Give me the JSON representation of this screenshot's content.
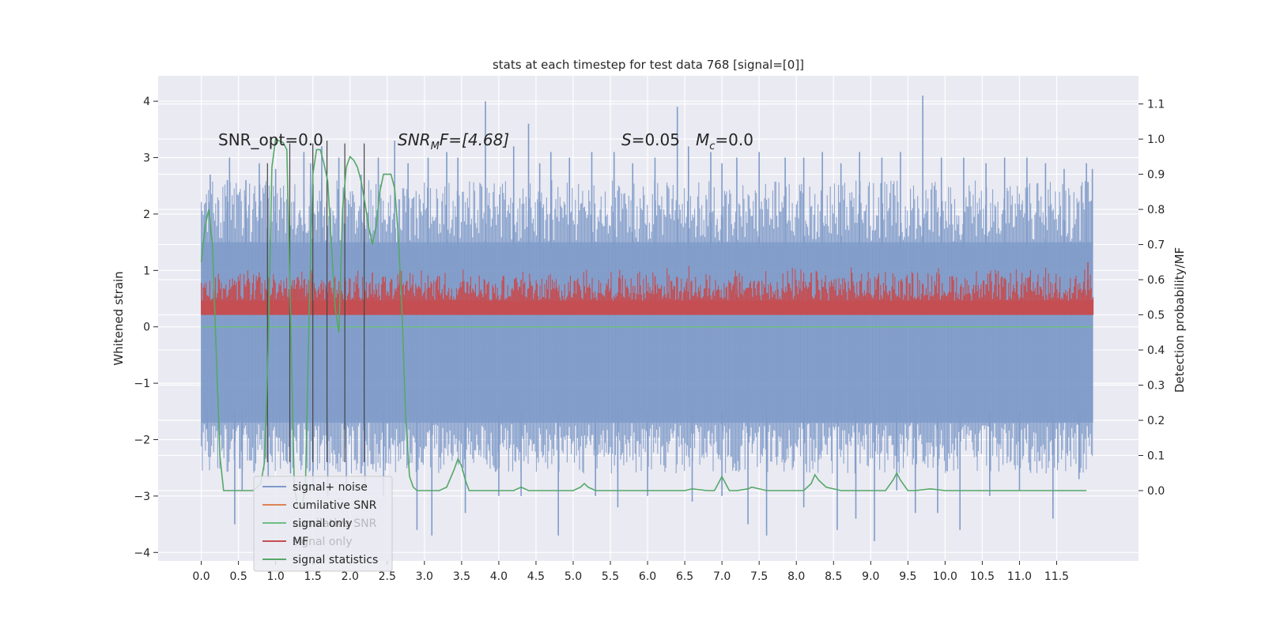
{
  "chart_data": {
    "type": "line",
    "title": "stats at each timestep for test data 768 [signal=[0]]",
    "xlabel": "",
    "ylabel": "Whitened strain",
    "ylabel_right": "Detection probability/MF",
    "xlim": [
      -0.58,
      12.6
    ],
    "ylim": [
      -4.15,
      4.45
    ],
    "ylim_right": [
      -0.2,
      1.18
    ],
    "xticks": [
      0.0,
      0.5,
      1.0,
      1.5,
      2.0,
      2.5,
      3.0,
      3.5,
      4.0,
      4.5,
      5.0,
      5.5,
      6.0,
      6.5,
      7.0,
      7.5,
      8.0,
      8.5,
      9.0,
      9.5,
      10.0,
      10.5,
      11.0,
      11.5
    ],
    "xtick_labels": [
      "0.0",
      "0.5",
      "1.0",
      "1.5",
      "2.0",
      "2.5",
      "3.0",
      "3.5",
      "4.0",
      "4.5",
      "5.0",
      "5.5",
      "6.0",
      "6.5",
      "7.0",
      "7.5",
      "8.0",
      "8.5",
      "9.0",
      "9.5",
      "10.0",
      "10.5",
      "11.0",
      "11.5"
    ],
    "yticks": [
      -4,
      -3,
      -2,
      -1,
      0,
      1,
      2,
      3,
      4
    ],
    "ytick_labels": [
      "−4",
      "−3",
      "−2",
      "−1",
      "0",
      "1",
      "2",
      "3",
      "4"
    ],
    "yticks_right": [
      0.0,
      0.1,
      0.2,
      0.3,
      0.4,
      0.5,
      0.6,
      0.7,
      0.8,
      0.9,
      1.0,
      1.1
    ],
    "ytick_labels_right": [
      "0.0",
      "0.1",
      "0.2",
      "0.3",
      "0.4",
      "0.5",
      "0.6",
      "0.7",
      "0.8",
      "0.9",
      "1.0",
      "1.1"
    ],
    "annotations": {
      "snr_opt": "SNR_opt=0.0",
      "snr_mf_prefix": "SNR",
      "snr_mf_sub": "M",
      "snr_mf_suffix": "F=[4.68]",
      "s_label": "S",
      "s_value": "=0.05",
      "mc_label": "M",
      "mc_sub": "c",
      "mc_value": "=0.0"
    },
    "vertical_lines_x": [
      0.89,
      1.19,
      1.5,
      1.69,
      1.93,
      2.19
    ],
    "vertical_lines_top": [
      2.9,
      3.25,
      3.25,
      3.3,
      3.25,
      3.25
    ],
    "noise_series": {
      "name": "signal+ noise",
      "color": "#7f9bc9",
      "x_range": [
        0.0,
        11.99
      ],
      "band": [
        -1.7,
        1.5
      ],
      "spikes_up": [
        [
          0.06,
          2.2
        ],
        [
          0.12,
          2.7
        ],
        [
          0.35,
          2.6
        ],
        [
          0.38,
          3.0
        ],
        [
          0.6,
          2.6
        ],
        [
          0.78,
          2.9
        ],
        [
          1.0,
          2.8
        ],
        [
          1.38,
          3.1
        ],
        [
          1.47,
          2.9
        ],
        [
          1.62,
          3.2
        ],
        [
          1.85,
          3.0
        ],
        [
          2.15,
          2.7
        ],
        [
          2.38,
          3.0
        ],
        [
          2.6,
          3.3
        ],
        [
          2.78,
          2.9
        ],
        [
          3.05,
          3.0
        ],
        [
          3.3,
          3.1
        ],
        [
          3.45,
          3.0
        ],
        [
          3.82,
          4.0
        ],
        [
          4.2,
          3.2
        ],
        [
          4.4,
          3.6
        ],
        [
          4.55,
          2.9
        ],
        [
          4.7,
          3.1
        ],
        [
          4.95,
          3.0
        ],
        [
          5.25,
          3.1
        ],
        [
          5.55,
          3.1
        ],
        [
          5.8,
          2.9
        ],
        [
          6.1,
          3.0
        ],
        [
          6.4,
          3.9
        ],
        [
          6.55,
          3.2
        ],
        [
          6.85,
          3.1
        ],
        [
          7.0,
          2.9
        ],
        [
          7.2,
          3.0
        ],
        [
          7.5,
          3.1
        ],
        [
          7.85,
          3.0
        ],
        [
          8.1,
          3.0
        ],
        [
          8.35,
          3.1
        ],
        [
          8.6,
          2.9
        ],
        [
          8.85,
          3.1
        ],
        [
          9.15,
          3.0
        ],
        [
          9.4,
          3.1
        ],
        [
          9.7,
          4.1
        ],
        [
          9.95,
          3.0
        ],
        [
          10.25,
          3.0
        ],
        [
          10.55,
          2.9
        ],
        [
          10.8,
          3.0
        ],
        [
          11.1,
          3.0
        ],
        [
          11.35,
          2.9
        ],
        [
          11.6,
          2.8
        ],
        [
          11.9,
          2.9
        ],
        [
          11.98,
          2.8
        ]
      ],
      "spikes_down": [
        [
          0.08,
          -1.8
        ],
        [
          0.45,
          -3.5
        ],
        [
          0.55,
          -2.9
        ],
        [
          0.9,
          -2.7
        ],
        [
          1.2,
          -2.6
        ],
        [
          1.5,
          -2.9
        ],
        [
          1.7,
          -3.0
        ],
        [
          1.95,
          -2.8
        ],
        [
          2.2,
          -2.9
        ],
        [
          2.45,
          -3.0
        ],
        [
          2.9,
          -3.6
        ],
        [
          3.1,
          -3.7
        ],
        [
          3.55,
          -3.3
        ],
        [
          4.0,
          -3.0
        ],
        [
          4.3,
          -3.0
        ],
        [
          4.8,
          -3.7
        ],
        [
          5.3,
          -3.0
        ],
        [
          5.6,
          -3.2
        ],
        [
          6.0,
          -3.0
        ],
        [
          6.6,
          -3.1
        ],
        [
          7.0,
          -3.0
        ],
        [
          7.35,
          -3.5
        ],
        [
          7.6,
          -3.7
        ],
        [
          8.1,
          -3.2
        ],
        [
          8.55,
          -3.6
        ],
        [
          8.8,
          -3.4
        ],
        [
          9.05,
          -3.8
        ],
        [
          9.35,
          -2.9
        ],
        [
          9.6,
          -3.3
        ],
        [
          9.9,
          -3.3
        ],
        [
          10.2,
          -3.6
        ],
        [
          10.6,
          -3.0
        ],
        [
          11.0,
          -2.9
        ],
        [
          11.45,
          -3.4
        ],
        [
          11.8,
          -2.7
        ]
      ]
    },
    "mf_series": {
      "name": "MF",
      "color": "#c44e52",
      "x_range": [
        0.0,
        11.99
      ],
      "band_right": [
        0.5,
        0.54
      ],
      "peak_right": 0.64,
      "spikes_right": [
        [
          1.25,
          0.6
        ],
        [
          2.3,
          0.62
        ],
        [
          3.2,
          0.61
        ],
        [
          4.3,
          0.6
        ],
        [
          6.1,
          0.61
        ],
        [
          7.2,
          0.61
        ],
        [
          8.2,
          0.62
        ],
        [
          9.1,
          0.61
        ],
        [
          10.1,
          0.61
        ],
        [
          11.92,
          0.65
        ]
      ]
    },
    "zero_line": {
      "name": "signal only",
      "color": "#6cbf84",
      "y": 0.0
    },
    "statistics_series": {
      "name": "signal statistics",
      "color": "#55a868",
      "x": [
        0.0,
        0.05,
        0.1,
        0.15,
        0.2,
        0.25,
        0.3,
        0.5,
        0.7,
        0.8,
        0.85,
        0.9,
        0.95,
        1.0,
        1.1,
        1.15,
        1.2,
        1.25,
        1.3,
        1.35,
        1.4,
        1.45,
        1.5,
        1.55,
        1.6,
        1.65,
        1.7,
        1.75,
        1.8,
        1.85,
        1.9,
        1.95,
        2.0,
        2.05,
        2.1,
        2.15,
        2.2,
        2.25,
        2.3,
        2.35,
        2.4,
        2.45,
        2.5,
        2.55,
        2.6,
        2.65,
        2.7,
        2.75,
        2.8,
        2.85,
        2.9,
        2.95,
        3.0,
        3.1,
        3.2,
        3.3,
        3.4,
        3.45,
        3.5,
        3.55,
        3.6,
        3.7,
        3.8,
        4.0,
        4.2,
        4.3,
        4.4,
        4.6,
        5.0,
        5.1,
        5.15,
        5.2,
        5.3,
        5.5,
        6.0,
        6.3,
        6.5,
        6.6,
        6.8,
        6.9,
        6.95,
        7.0,
        7.05,
        7.1,
        7.2,
        7.35,
        7.4,
        7.6,
        7.8,
        8.0,
        8.1,
        8.2,
        8.25,
        8.3,
        8.4,
        8.6,
        9.0,
        9.2,
        9.3,
        9.35,
        9.4,
        9.5,
        9.6,
        9.8,
        10.0,
        10.5,
        11.0,
        11.5,
        11.9
      ],
      "y": [
        0.65,
        0.75,
        0.8,
        0.7,
        0.4,
        0.1,
        0.0,
        0.0,
        0.0,
        0.02,
        0.08,
        0.4,
        0.92,
        1.0,
        0.99,
        0.97,
        0.5,
        0.01,
        -0.05,
        -0.05,
        0.01,
        0.5,
        0.9,
        0.97,
        0.97,
        0.93,
        0.88,
        0.7,
        0.52,
        0.45,
        0.8,
        0.92,
        0.95,
        0.94,
        0.92,
        0.88,
        0.82,
        0.75,
        0.7,
        0.75,
        0.85,
        0.9,
        0.9,
        0.9,
        0.86,
        0.72,
        0.5,
        0.2,
        0.04,
        0.01,
        0.0,
        0.0,
        0.0,
        0.0,
        0.0,
        0.01,
        0.06,
        0.09,
        0.07,
        0.03,
        0.0,
        0.0,
        0.0,
        0.0,
        0.0,
        0.01,
        0.0,
        0.0,
        0.0,
        0.01,
        0.02,
        0.01,
        0.0,
        0.0,
        0.0,
        0.0,
        0.0,
        0.005,
        0.0,
        0.0,
        0.02,
        0.04,
        0.02,
        0.0,
        0.0,
        0.005,
        0.01,
        0.0,
        0.0,
        0.0,
        0.0,
        0.02,
        0.045,
        0.03,
        0.01,
        0.0,
        0.0,
        0.0,
        0.03,
        0.05,
        0.03,
        0.0,
        0.0,
        0.005,
        0.0,
        0.0,
        0.0,
        0.0,
        0.0
      ]
    },
    "legend": {
      "position": "lower-left",
      "items": [
        {
          "label": "signal+ noise",
          "color": "#7f9bc9"
        },
        {
          "label": "cumilative SNR",
          "color": "#dd8452"
        },
        {
          "label": "signal only",
          "color": "#6cbf84"
        },
        {
          "label": "MF",
          "color": "#c44e52"
        },
        {
          "label": "signal statistics",
          "color": "#55a868"
        }
      ],
      "ghost_items": [
        "cumilative SNR",
        "signal only"
      ]
    },
    "colors": {
      "axes_bg": "#eaeaf2",
      "grid": "#ffffff",
      "vline": "#444444"
    }
  }
}
